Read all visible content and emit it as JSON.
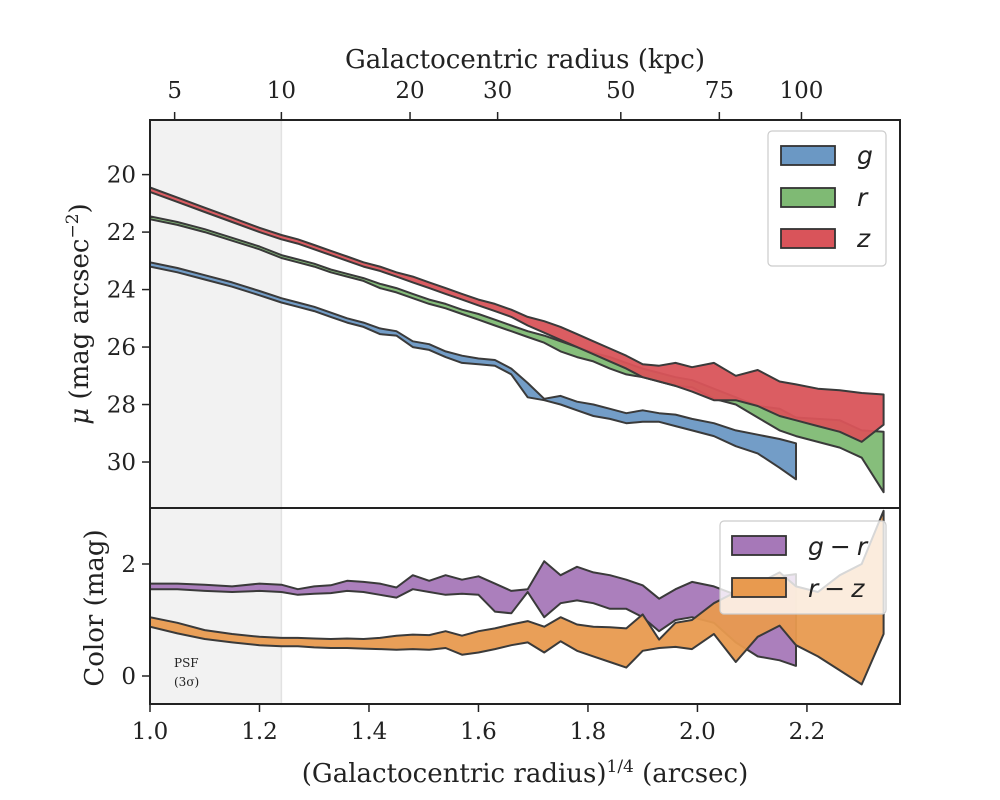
{
  "chart_data": [
    {
      "panel": "surface-brightness",
      "type": "area",
      "xlabel": "(Galactocentric radius)^1/4 (arcsec)",
      "xlabel_base": "(Galactocentric radius)",
      "xlabel_exp": "1/4",
      "xlabel_unit": " (arcsec)",
      "xlim": [
        1.0,
        2.37
      ],
      "x_ticks": [
        1.0,
        1.2,
        1.4,
        1.6,
        1.8,
        2.0,
        2.2
      ],
      "x_tick_labels": [
        "1.0",
        "1.2",
        "1.4",
        "1.6",
        "1.8",
        "2.0",
        "2.2"
      ],
      "top_axis": {
        "label": "Galactocentric radius (kpc)",
        "ticks": [
          5,
          10,
          20,
          30,
          50,
          75,
          100
        ],
        "tick_labels": [
          "5",
          "10",
          "20",
          "30",
          "50",
          "75",
          "100"
        ],
        "tick_positions_x14": [
          1.045,
          1.24,
          1.475,
          1.635,
          1.86,
          2.04,
          2.19
        ]
      },
      "ylabel": "μ (mag arcsec⁻²)",
      "ylabel_sym": "μ",
      "ylabel_text": " (mag arcsec",
      "ylabel_exp": "−2",
      "ylabel_close": ")",
      "ylim": [
        31.6,
        18.1
      ],
      "y_inverted": true,
      "y_ticks": [
        20,
        22,
        24,
        26,
        28,
        30
      ],
      "y_tick_labels": [
        "20",
        "22",
        "24",
        "26",
        "28",
        "30"
      ],
      "psf_region": [
        1.0,
        1.24
      ],
      "legend": "top-right",
      "series": [
        {
          "name": "g",
          "color": "#6b98c4",
          "x": [
            1.0,
            1.05,
            1.1,
            1.15,
            1.2,
            1.24,
            1.27,
            1.3,
            1.33,
            1.36,
            1.39,
            1.42,
            1.45,
            1.48,
            1.51,
            1.54,
            1.57,
            1.6,
            1.63,
            1.66,
            1.69,
            1.72,
            1.75,
            1.78,
            1.81,
            1.84,
            1.87,
            1.9,
            1.93,
            1.96,
            1.99,
            2.03,
            2.07,
            2.11,
            2.15,
            2.18
          ],
          "lower": [
            23.05,
            23.25,
            23.5,
            23.75,
            24.05,
            24.3,
            24.45,
            24.6,
            24.8,
            25.0,
            25.15,
            25.35,
            25.45,
            25.8,
            25.9,
            26.15,
            26.3,
            26.4,
            26.45,
            26.75,
            27.25,
            27.8,
            27.7,
            27.9,
            28.0,
            28.15,
            28.3,
            28.2,
            28.3,
            28.35,
            28.5,
            28.65,
            28.9,
            29.05,
            29.2,
            29.35
          ],
          "upper": [
            23.2,
            23.4,
            23.65,
            23.9,
            24.2,
            24.45,
            24.6,
            24.75,
            24.95,
            25.15,
            25.3,
            25.55,
            25.6,
            26.0,
            26.1,
            26.35,
            26.55,
            26.6,
            26.65,
            26.95,
            27.75,
            27.85,
            28.0,
            28.2,
            28.4,
            28.5,
            28.65,
            28.6,
            28.6,
            28.75,
            28.9,
            29.1,
            29.45,
            29.7,
            30.2,
            30.6
          ]
        },
        {
          "name": "r",
          "color": "#7fba74",
          "x": [
            1.0,
            1.05,
            1.1,
            1.15,
            1.2,
            1.24,
            1.27,
            1.3,
            1.33,
            1.36,
            1.39,
            1.42,
            1.45,
            1.48,
            1.51,
            1.54,
            1.57,
            1.6,
            1.63,
            1.66,
            1.69,
            1.72,
            1.75,
            1.78,
            1.81,
            1.84,
            1.87,
            1.9,
            1.93,
            1.96,
            1.99,
            2.03,
            2.07,
            2.11,
            2.15,
            2.18,
            2.22,
            2.26,
            2.3,
            2.34
          ],
          "lower": [
            21.45,
            21.65,
            21.9,
            22.2,
            22.5,
            22.8,
            22.95,
            23.1,
            23.3,
            23.45,
            23.6,
            23.8,
            23.95,
            24.15,
            24.35,
            24.5,
            24.7,
            24.85,
            25.05,
            25.25,
            25.45,
            25.6,
            25.8,
            26.0,
            26.2,
            26.35,
            26.55,
            26.75,
            26.9,
            27.05,
            27.15,
            27.45,
            27.75,
            28.05,
            28.15,
            28.45,
            28.5,
            28.55,
            28.9,
            28.95
          ],
          "upper": [
            21.55,
            21.75,
            22.0,
            22.3,
            22.6,
            22.9,
            23.05,
            23.2,
            23.4,
            23.55,
            23.7,
            23.95,
            24.1,
            24.3,
            24.5,
            24.65,
            24.85,
            25.05,
            25.25,
            25.45,
            25.65,
            25.85,
            26.15,
            26.35,
            26.5,
            26.75,
            26.95,
            27.05,
            27.2,
            27.35,
            27.4,
            27.8,
            28.0,
            28.45,
            28.9,
            29.1,
            29.3,
            29.5,
            29.85,
            31.05
          ]
        },
        {
          "name": "z",
          "color": "#d9545a",
          "x": [
            1.0,
            1.05,
            1.1,
            1.15,
            1.2,
            1.24,
            1.27,
            1.3,
            1.33,
            1.36,
            1.39,
            1.42,
            1.45,
            1.48,
            1.51,
            1.54,
            1.57,
            1.6,
            1.63,
            1.66,
            1.69,
            1.72,
            1.75,
            1.78,
            1.81,
            1.84,
            1.87,
            1.9,
            1.93,
            1.96,
            1.99,
            2.03,
            2.07,
            2.11,
            2.15,
            2.18,
            2.22,
            2.26,
            2.3,
            2.34
          ],
          "lower": [
            20.45,
            20.8,
            21.15,
            21.5,
            21.85,
            22.1,
            22.25,
            22.45,
            22.65,
            22.85,
            23.05,
            23.2,
            23.4,
            23.55,
            23.75,
            23.95,
            24.15,
            24.35,
            24.5,
            24.7,
            24.95,
            25.1,
            25.3,
            25.55,
            25.8,
            26.05,
            26.3,
            26.6,
            26.65,
            26.55,
            26.7,
            26.55,
            27.0,
            26.8,
            27.2,
            27.3,
            27.45,
            27.5,
            27.6,
            27.65
          ],
          "upper": [
            20.6,
            20.95,
            21.3,
            21.65,
            22.0,
            22.25,
            22.4,
            22.6,
            22.8,
            23.0,
            23.2,
            23.35,
            23.55,
            23.75,
            23.95,
            24.15,
            24.35,
            24.55,
            24.75,
            24.95,
            25.25,
            25.5,
            25.75,
            26.0,
            26.25,
            26.5,
            26.75,
            27.05,
            27.2,
            27.35,
            27.55,
            27.85,
            27.85,
            28.05,
            28.4,
            28.55,
            28.75,
            28.95,
            29.3,
            28.7
          ]
        }
      ]
    },
    {
      "panel": "color",
      "type": "area",
      "xlim": [
        1.0,
        2.37
      ],
      "ylabel": "Color (mag)",
      "ylim": [
        -0.5,
        3.0
      ],
      "y_ticks": [
        0,
        2
      ],
      "y_tick_labels": [
        "0",
        "2"
      ],
      "psf_region": [
        1.0,
        1.24
      ],
      "psf_label": [
        "PSF",
        "(3σ)"
      ],
      "legend": "top-right",
      "series": [
        {
          "name": "g − r",
          "name_left": "g",
          "name_op": "−",
          "name_right": "r",
          "color": "#a678b8",
          "x": [
            1.0,
            1.05,
            1.1,
            1.15,
            1.2,
            1.24,
            1.27,
            1.3,
            1.33,
            1.36,
            1.39,
            1.42,
            1.45,
            1.48,
            1.51,
            1.54,
            1.57,
            1.6,
            1.63,
            1.66,
            1.69,
            1.72,
            1.75,
            1.78,
            1.81,
            1.84,
            1.87,
            1.9,
            1.93,
            1.96,
            1.99,
            2.03,
            2.07,
            2.11,
            2.15,
            2.18
          ],
          "lower": [
            1.55,
            1.55,
            1.52,
            1.5,
            1.52,
            1.5,
            1.45,
            1.47,
            1.48,
            1.52,
            1.5,
            1.45,
            1.4,
            1.55,
            1.5,
            1.45,
            1.47,
            1.45,
            1.15,
            1.12,
            1.5,
            1.05,
            1.3,
            1.35,
            1.3,
            1.2,
            1.2,
            1.05,
            0.8,
            1.0,
            1.05,
            0.95,
            0.6,
            0.35,
            0.28,
            0.18
          ],
          "upper": [
            1.65,
            1.65,
            1.63,
            1.6,
            1.65,
            1.63,
            1.55,
            1.6,
            1.62,
            1.7,
            1.68,
            1.65,
            1.58,
            1.8,
            1.7,
            1.8,
            1.72,
            1.78,
            1.65,
            1.52,
            1.55,
            2.05,
            1.8,
            1.95,
            1.85,
            1.8,
            1.72,
            1.62,
            1.38,
            1.55,
            1.68,
            1.6,
            1.45,
            1.62,
            1.78,
            1.82
          ]
        },
        {
          "name": "r − z",
          "name_left": "r",
          "name_op": "−",
          "name_right": "z",
          "color": "#e89a4f",
          "x": [
            1.0,
            1.05,
            1.1,
            1.15,
            1.2,
            1.24,
            1.27,
            1.3,
            1.33,
            1.36,
            1.39,
            1.42,
            1.45,
            1.48,
            1.51,
            1.54,
            1.57,
            1.6,
            1.63,
            1.66,
            1.69,
            1.72,
            1.75,
            1.78,
            1.81,
            1.84,
            1.87,
            1.9,
            1.93,
            1.96,
            1.99,
            2.03,
            2.07,
            2.11,
            2.15,
            2.18,
            2.22,
            2.26,
            2.3,
            2.34
          ],
          "lower": [
            0.88,
            0.76,
            0.66,
            0.6,
            0.55,
            0.53,
            0.53,
            0.51,
            0.5,
            0.5,
            0.49,
            0.48,
            0.47,
            0.48,
            0.47,
            0.5,
            0.38,
            0.42,
            0.48,
            0.55,
            0.6,
            0.42,
            0.62,
            0.45,
            0.35,
            0.25,
            0.15,
            0.45,
            0.5,
            0.52,
            0.48,
            0.75,
            0.25,
            0.7,
            0.9,
            0.55,
            0.35,
            0.1,
            -0.15,
            0.75
          ],
          "upper": [
            1.05,
            0.95,
            0.82,
            0.75,
            0.7,
            0.68,
            0.68,
            0.67,
            0.66,
            0.67,
            0.66,
            0.68,
            0.72,
            0.74,
            0.73,
            0.8,
            0.72,
            0.8,
            0.85,
            0.92,
            0.98,
            0.88,
            1.05,
            0.92,
            0.88,
            0.87,
            0.85,
            1.1,
            0.65,
            0.95,
            1.0,
            1.3,
            1.5,
            1.65,
            1.85,
            1.6,
            1.5,
            1.8,
            2.0,
            2.95
          ]
        }
      ]
    }
  ]
}
